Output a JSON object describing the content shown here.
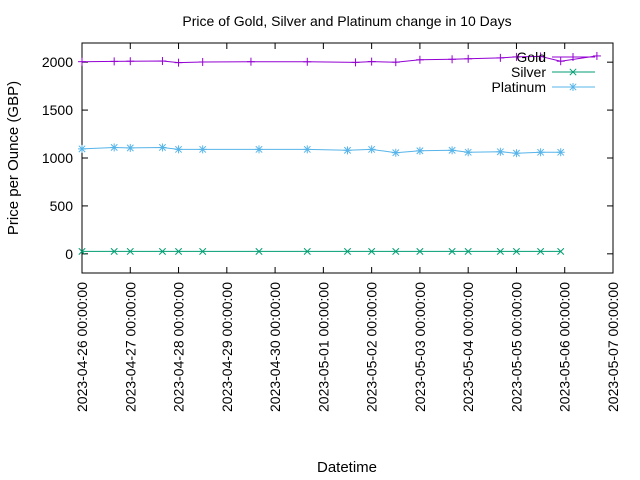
{
  "chart_data": {
    "type": "line",
    "title": "Price of Gold, Silver and Platinum change in 10 Days",
    "xlabel": "Datetime",
    "ylabel": "Price per Ounce (GBP)",
    "x_ticks": [
      "2023-04-26 00:00:00",
      "2023-04-27 00:00:00",
      "2023-04-28 00:00:00",
      "2023-04-29 00:00:00",
      "2023-04-30 00:00:00",
      "2023-05-01 00:00:00",
      "2023-05-02 00:00:00",
      "2023-05-03 00:00:00",
      "2023-05-04 00:00:00",
      "2023-05-05 00:00:00",
      "2023-05-06 00:00:00",
      "2023-05-07 00:00:00"
    ],
    "y_ticks": [
      0,
      500,
      1000,
      1500,
      2000
    ],
    "xlim": [
      "2023-04-26 00:00:00",
      "2023-05-07 00:00:00"
    ],
    "ylim": [
      -200,
      2200
    ],
    "grid": false,
    "legend": "top-right",
    "series": [
      {
        "name": "Gold",
        "color": "#9400d3",
        "marker": "plus",
        "points": [
          [
            "2023-04-26 00:00:00",
            2005
          ],
          [
            "2023-04-26 16:00:00",
            2008
          ],
          [
            "2023-04-27 00:00:00",
            2010
          ],
          [
            "2023-04-27 16:00:00",
            2012
          ],
          [
            "2023-04-28 00:00:00",
            1995
          ],
          [
            "2023-04-28 12:00:00",
            2002
          ],
          [
            "2023-04-29 12:00:00",
            2005
          ],
          [
            "2023-04-30 16:00:00",
            2004
          ],
          [
            "2023-05-01 16:00:00",
            1998
          ],
          [
            "2023-05-02 00:00:00",
            2006
          ],
          [
            "2023-05-02 12:00:00",
            2000
          ],
          [
            "2023-05-03 00:00:00",
            2025
          ],
          [
            "2023-05-03 16:00:00",
            2030
          ],
          [
            "2023-05-04 00:00:00",
            2035
          ],
          [
            "2023-05-04 16:00:00",
            2045
          ],
          [
            "2023-05-05 00:00:00",
            2055
          ],
          [
            "2023-05-05 12:00:00",
            2060
          ],
          [
            "2023-05-05 22:00:00",
            2010
          ],
          [
            "2023-05-06 16:00:00",
            2065
          ]
        ]
      },
      {
        "name": "Silver",
        "color": "#009e73",
        "marker": "cross",
        "points": [
          [
            "2023-04-26 00:00:00",
            25
          ],
          [
            "2023-04-26 16:00:00",
            25
          ],
          [
            "2023-04-27 00:00:00",
            25
          ],
          [
            "2023-04-27 16:00:00",
            25
          ],
          [
            "2023-04-28 00:00:00",
            25
          ],
          [
            "2023-04-28 12:00:00",
            25
          ],
          [
            "2023-04-29 16:00:00",
            25
          ],
          [
            "2023-04-30 16:00:00",
            25
          ],
          [
            "2023-05-01 12:00:00",
            25
          ],
          [
            "2023-05-02 00:00:00",
            25
          ],
          [
            "2023-05-02 12:00:00",
            25
          ],
          [
            "2023-05-03 00:00:00",
            25
          ],
          [
            "2023-05-03 16:00:00",
            25
          ],
          [
            "2023-05-04 00:00:00",
            25
          ],
          [
            "2023-05-04 16:00:00",
            25
          ],
          [
            "2023-05-05 00:00:00",
            25
          ],
          [
            "2023-05-05 12:00:00",
            25
          ],
          [
            "2023-05-05 22:00:00",
            25
          ]
        ]
      },
      {
        "name": "Platinum",
        "color": "#56b4e9",
        "marker": "star",
        "points": [
          [
            "2023-04-26 00:00:00",
            1095
          ],
          [
            "2023-04-26 16:00:00",
            1110
          ],
          [
            "2023-04-27 00:00:00",
            1105
          ],
          [
            "2023-04-27 16:00:00",
            1110
          ],
          [
            "2023-04-28 00:00:00",
            1090
          ],
          [
            "2023-04-28 12:00:00",
            1090
          ],
          [
            "2023-04-29 16:00:00",
            1090
          ],
          [
            "2023-04-30 16:00:00",
            1090
          ],
          [
            "2023-05-01 12:00:00",
            1080
          ],
          [
            "2023-05-02 00:00:00",
            1090
          ],
          [
            "2023-05-02 12:00:00",
            1055
          ],
          [
            "2023-05-03 00:00:00",
            1075
          ],
          [
            "2023-05-03 16:00:00",
            1080
          ],
          [
            "2023-05-04 00:00:00",
            1060
          ],
          [
            "2023-05-04 16:00:00",
            1065
          ],
          [
            "2023-05-05 00:00:00",
            1050
          ],
          [
            "2023-05-05 12:00:00",
            1060
          ],
          [
            "2023-05-05 22:00:00",
            1060
          ]
        ]
      }
    ]
  }
}
